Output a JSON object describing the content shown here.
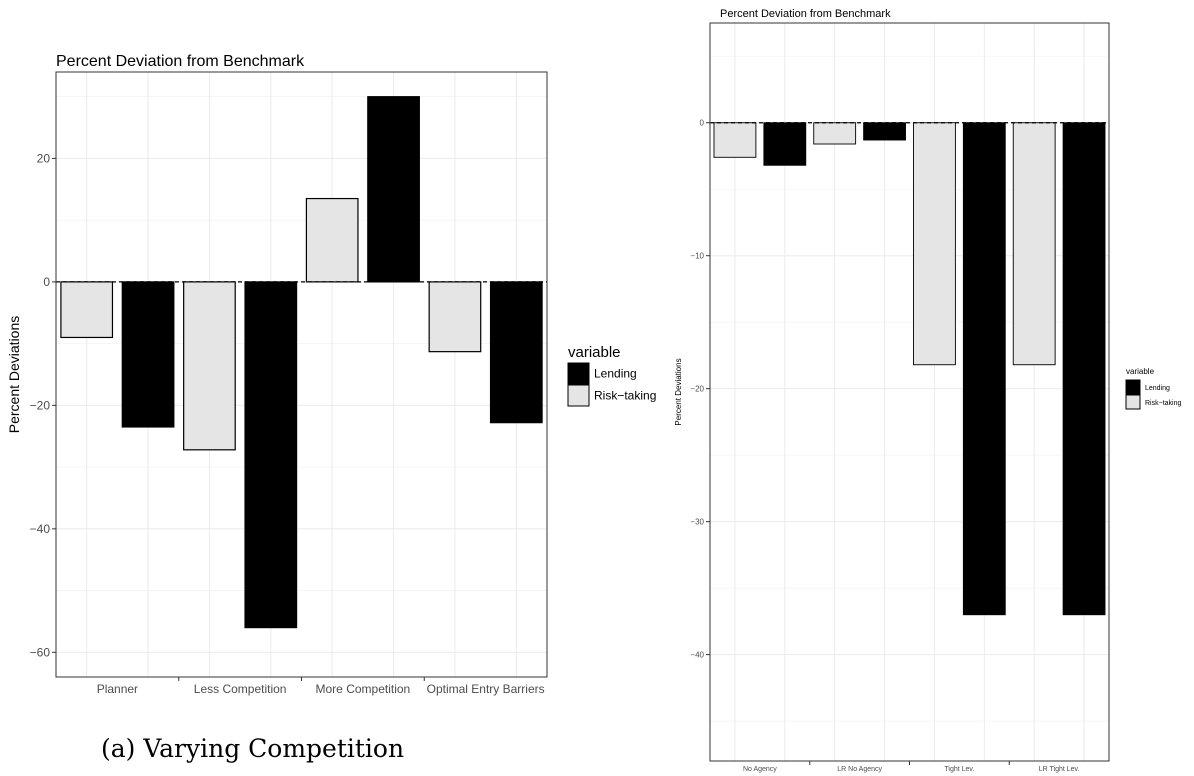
{
  "chart_data": [
    {
      "type": "bar",
      "title": "Percent Deviation from Benchmark",
      "ylabel": "Percent Deviations",
      "xlabel": "",
      "ylim": [
        -64,
        34
      ],
      "yticks": [
        20,
        0,
        -20,
        -40,
        -60
      ],
      "categories": [
        "Planner",
        "Less Competition",
        "More Competition",
        "Optimal Entry Barriers"
      ],
      "series": [
        {
          "name": "Risk−taking",
          "color": "#e5e5e5",
          "values": [
            -9,
            -27.2,
            13.5,
            -11.3
          ]
        },
        {
          "name": "Lending",
          "color": "#000000",
          "values": [
            -23.5,
            -56,
            30,
            -22.8
          ]
        }
      ],
      "legend": {
        "title": "variable",
        "items": [
          "Lending",
          "Risk−taking"
        ],
        "placement": "right"
      },
      "grid": true,
      "caption": "(a) Varying Competition"
    },
    {
      "type": "bar",
      "title": "Percent Deviation from Benchmark",
      "ylabel": "Percent Deviations",
      "xlabel": "",
      "ylim": [
        -48,
        7.5
      ],
      "yticks": [
        0,
        -10,
        -20,
        -30,
        -40
      ],
      "categories": [
        "No Agency",
        "LR No Agency",
        "Tight Lev.",
        "LR Tight Lev."
      ],
      "series": [
        {
          "name": "Risk−taking",
          "color": "#e5e5e5",
          "values": [
            -2.6,
            -1.6,
            -18.2,
            -18.2
          ]
        },
        {
          "name": "Lending",
          "color": "#000000",
          "values": [
            -3.2,
            -1.3,
            -37,
            -37
          ]
        }
      ],
      "legend": {
        "title": "variable",
        "items": [
          "Lending",
          "Risk−taking"
        ],
        "placement": "right"
      },
      "grid": true
    }
  ]
}
